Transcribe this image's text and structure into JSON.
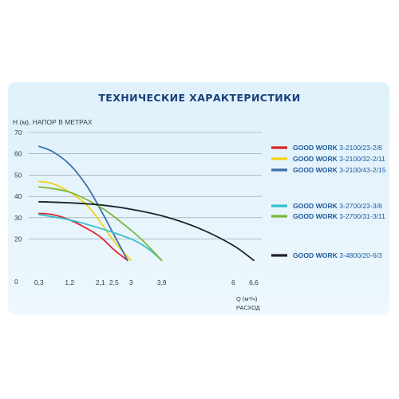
{
  "chart_data": {
    "type": "line",
    "title": "ТЕХНИЧЕСКИЕ  ХАРАКТЕРИСТИКИ",
    "ylabel": "H (м), НАПОР В МЕТРАХ",
    "xlabel": "Q (м³/ч)",
    "xlabel2": "РАСХОД",
    "ylim": [
      0,
      70
    ],
    "xlim": [
      0,
      6.6
    ],
    "y_ticks": [
      0,
      20,
      30,
      40,
      50,
      60,
      70
    ],
    "x_ticks": [
      {
        "value": 0.3,
        "label": "0,3"
      },
      {
        "value": 1.2,
        "label": "1,2"
      },
      {
        "value": 2.1,
        "label": "2,1"
      },
      {
        "value": 2.5,
        "label": "2,5"
      },
      {
        "value": 3,
        "label": "3"
      },
      {
        "value": 3.9,
        "label": "3,9"
      },
      {
        "value": 6,
        "label": "6"
      },
      {
        "value": 6.6,
        "label": "6,6"
      }
    ],
    "grid": true,
    "legend_position": "right",
    "series": [
      {
        "name_bold": "GOOD WORK ",
        "name_rest": "3-2100/23-2/8",
        "color": "#d9262b",
        "x": [
          0.3,
          0.7,
          1.2,
          1.7,
          2.1,
          2.5,
          2.9
        ],
        "y": [
          32,
          31.5,
          29,
          25,
          21,
          15,
          10
        ]
      },
      {
        "name_bold": "GOOD WORK ",
        "name_rest": "3-2100/32-2/11",
        "color": "#f2d21a",
        "x": [
          0.3,
          0.7,
          1.2,
          1.7,
          2.1,
          2.5,
          3.0
        ],
        "y": [
          47,
          46,
          42,
          36,
          28,
          19,
          10
        ]
      },
      {
        "name_bold": "GOOD WORK ",
        "name_rest": "3-2100/43-2/15",
        "color": "#3f6fa8",
        "x": [
          0.3,
          0.7,
          1.2,
          1.7,
          2.1,
          2.5,
          2.9
        ],
        "y": [
          63.5,
          61,
          55,
          45,
          34,
          22,
          10
        ]
      },
      {
        "name_bold": "GOOD WORK ",
        "name_rest": "3-2700/23-3/8",
        "color": "#36bfcf",
        "x": [
          0.3,
          1.2,
          2.1,
          3.0,
          3.5,
          3.9
        ],
        "y": [
          31.5,
          29,
          25,
          20,
          15.5,
          10
        ]
      },
      {
        "name_bold": "GOOD WORK ",
        "name_rest": "3-2700/31-3/11",
        "color": "#7ab83c",
        "x": [
          0.3,
          1.2,
          2.1,
          2.7,
          3.3,
          3.9
        ],
        "y": [
          44.5,
          42,
          35,
          28,
          20,
          10
        ]
      },
      {
        "name_bold": "GOOD WORK ",
        "name_rest": "3-4800/20-6/3",
        "color": "#1f232b",
        "x": [
          0.3,
          1.2,
          2.1,
          3.0,
          4.0,
          5.0,
          6.0,
          6.6
        ],
        "y": [
          37.5,
          37,
          36,
          34,
          30.5,
          25,
          17,
          10
        ]
      }
    ]
  }
}
